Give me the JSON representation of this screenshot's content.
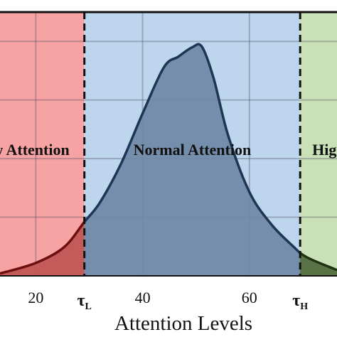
{
  "chart_data": {
    "type": "density",
    "x_label": "Attention Levels",
    "xlim": [
      13.3,
      76.4
    ],
    "ylim": [
      0,
      4.5
    ],
    "xticks": [
      20,
      40,
      60
    ],
    "yticks": [
      1,
      2,
      3,
      4
    ],
    "grid": true,
    "x": [
      13.3,
      20,
      25.3,
      29.1,
      32,
      36,
      40,
      44,
      46.7,
      49.3,
      51.1,
      53.3,
      56,
      60,
      64,
      68,
      70.7,
      76.4
    ],
    "values": [
      0.04,
      0.22,
      0.49,
      0.92,
      1.25,
      1.92,
      2.77,
      3.56,
      3.74,
      3.9,
      3.91,
      3.37,
      2.4,
      1.43,
      0.89,
      0.52,
      0.32,
      0.1
    ],
    "thresholds": [
      {
        "value": 29.1,
        "label": "τ",
        "sub": "L"
      },
      {
        "value": 69.5,
        "label": "τ",
        "sub": "H"
      }
    ],
    "regions": [
      {
        "name": "Low Attention",
        "from": 13.3,
        "to": 29.1,
        "color": "#f7a3a3",
        "fill": "#c05555",
        "line": "#6e0f0f"
      },
      {
        "name": "Normal Attention",
        "from": 29.1,
        "to": 69.5,
        "color": "#bdd6ee",
        "fill": "#6f88a6",
        "line": "#1e3653"
      },
      {
        "name": "High Attention",
        "from": 69.5,
        "to": 76.4,
        "color": "#c8e1b6",
        "fill": "#4f6b3c",
        "line": "#1f3312"
      }
    ]
  }
}
